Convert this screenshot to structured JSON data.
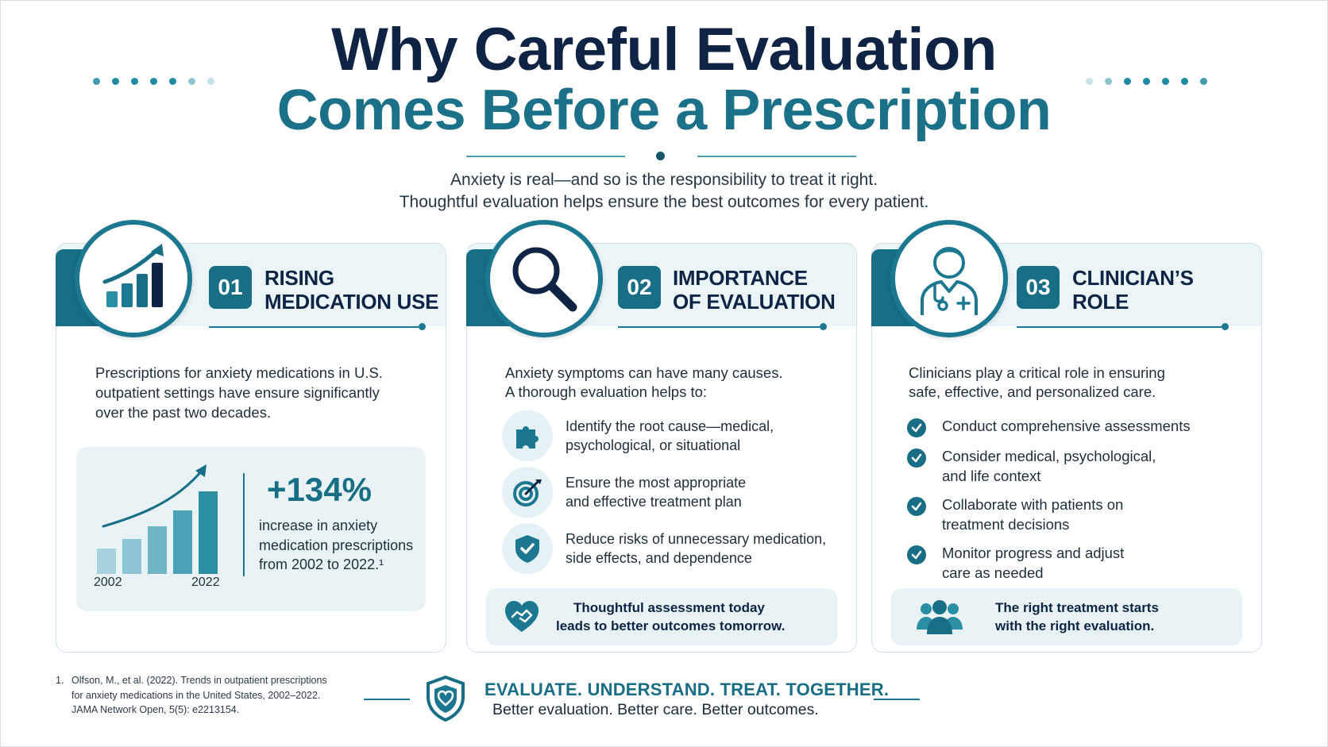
{
  "header": {
    "title_line1": "Why Careful Evaluation",
    "title_line2": "Comes Before a Prescription",
    "subtitle_line1": "Anxiety is real—and so is the responsibility to treat it right.",
    "subtitle_line2": "Thoughtful evaluation helps ensure the best outcomes for every patient."
  },
  "cards": [
    {
      "number": "01",
      "title_line1": "RISING",
      "title_line2": "MEDICATION USE",
      "icon": "rising-bar-chart-icon",
      "body_line1": "Prescriptions for anxiety medications in U.S.",
      "body_line2": "outpatient settings have ensure significantly",
      "body_line3": "over the past two decades.",
      "stat": {
        "value": "+134%",
        "text_line1": "increase in anxiety",
        "text_line2": "medication prescriptions",
        "text_line3": "from 2002 to 2022.¹",
        "year_start": "2002",
        "year_end": "2022"
      }
    },
    {
      "number": "02",
      "title_line1": "IMPORTANCE",
      "title_line2": "OF EVALUATION",
      "icon": "magnifying-glass-icon",
      "body_line1": "Anxiety symptoms can have many causes.",
      "body_line2": "A thorough evaluation helps to:",
      "items": [
        {
          "icon": "puzzle-icon",
          "line1": "Identify the root cause—medical,",
          "line2": "psychological, or situational"
        },
        {
          "icon": "target-icon",
          "line1": "Ensure the most appropriate",
          "line2": "and effective treatment plan"
        },
        {
          "icon": "shield-check-icon",
          "line1": "Reduce risks of unnecessary medication,",
          "line2": "side effects, and dependence"
        }
      ],
      "callout_line1": "Thoughtful assessment today",
      "callout_line2": "leads to better outcomes tomorrow.",
      "callout_icon": "heart-handshake-icon"
    },
    {
      "number": "03",
      "title_line1": "CLINICIAN’S",
      "title_line2": "ROLE",
      "icon": "doctor-icon",
      "body_line1": "Clinicians play a critical role in ensuring",
      "body_line2": "safe, effective, and personalized care.",
      "items": [
        {
          "line1": "Conduct comprehensive assessments",
          "line2": ""
        },
        {
          "line1": "Consider medical, psychological,",
          "line2": "and life context"
        },
        {
          "line1": "Collaborate with patients on",
          "line2": "treatment decisions"
        },
        {
          "line1": "Monitor progress and adjust",
          "line2": "care as needed"
        }
      ],
      "callout_line1": "The right treatment starts",
      "callout_line2": "with the right evaluation.",
      "callout_icon": "group-icon"
    }
  ],
  "footer": {
    "footnote_number": "1.",
    "footnote_line1": "Olfson, M., et al. (2022). Trends in outpatient prescriptions",
    "footnote_line2": "for anxiety medications in the United States, 2002–2022.",
    "footnote_line3": "JAMA Network Open, 5(5): e2213154.",
    "tagline": "EVALUATE. UNDERSTAND. TREAT. TOGETHER.",
    "subtagline": "Better evaluation. Better care. Better outcomes.",
    "emblem_icon": "shield-heart-icon"
  },
  "colors": {
    "navy": "#0f2444",
    "teal": "#1a7188",
    "teal_dark": "#176e85",
    "light_panel": "#e9f3f6"
  }
}
